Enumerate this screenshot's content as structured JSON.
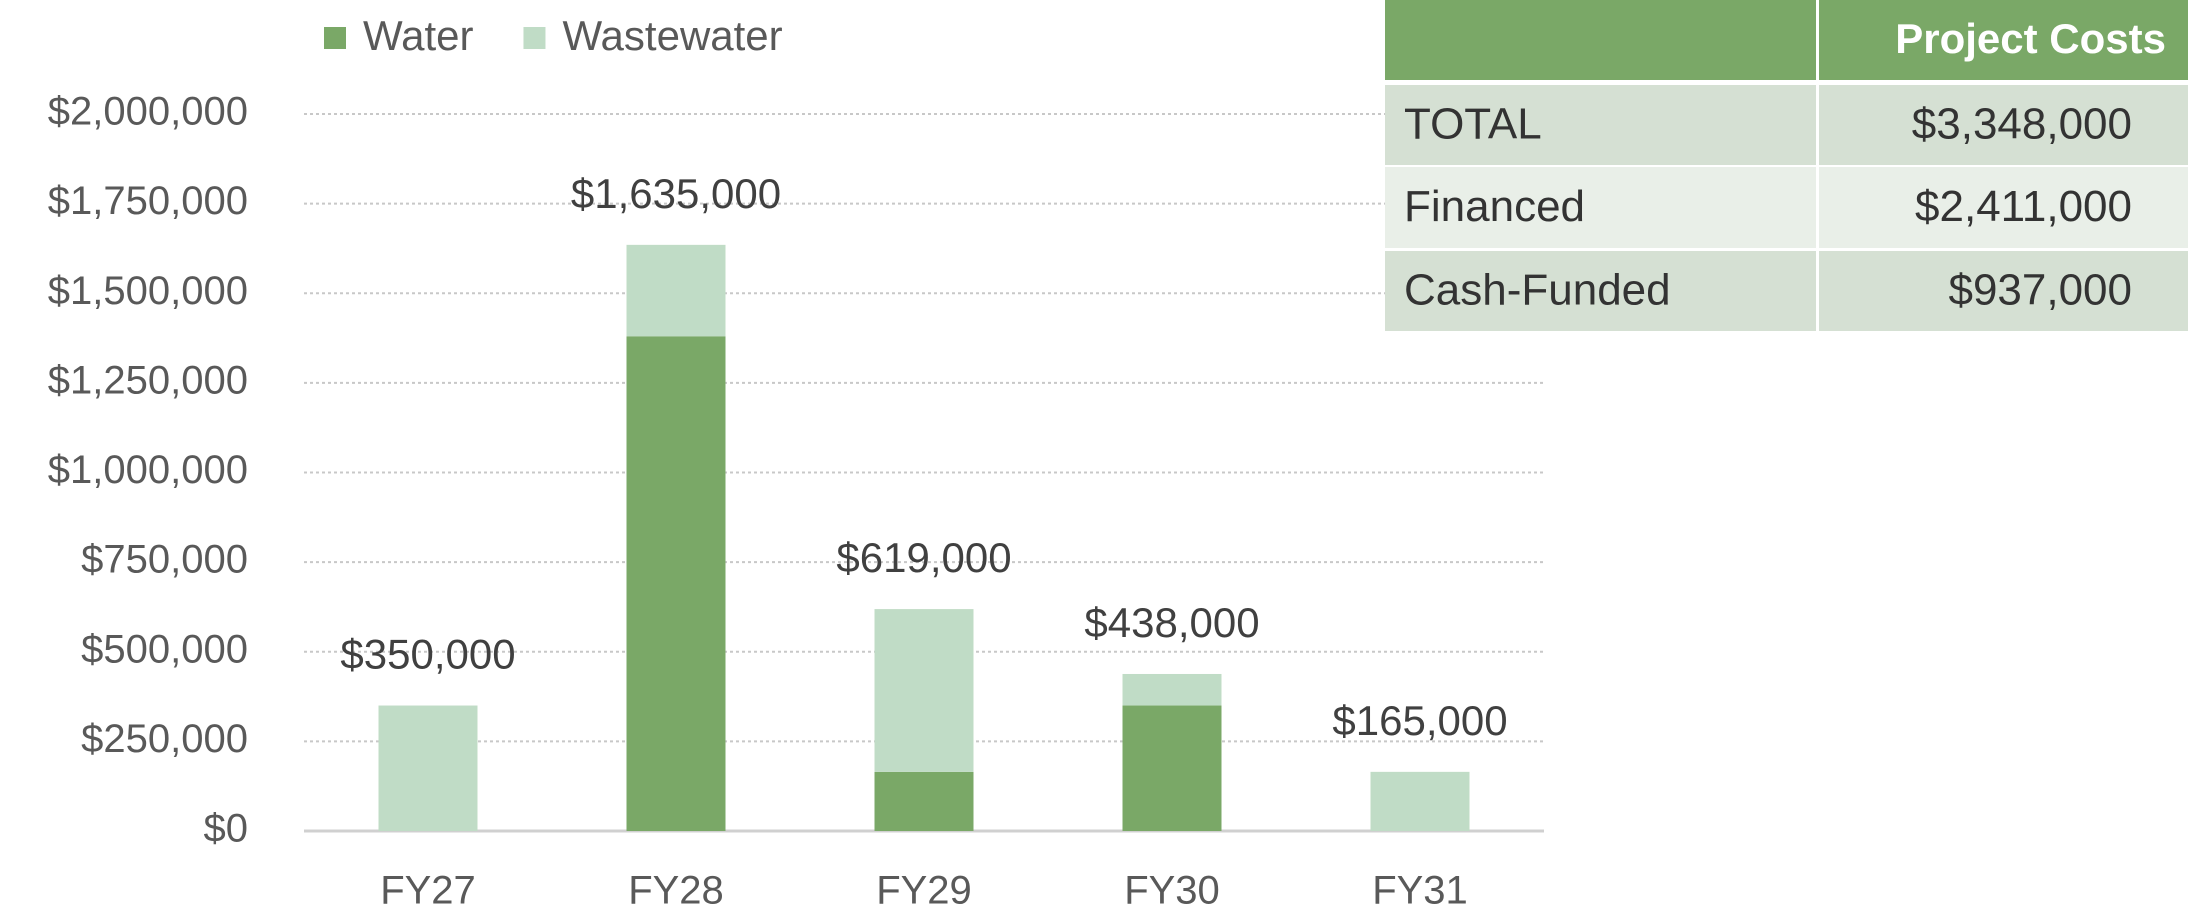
{
  "chart_data": {
    "type": "stacked_bar",
    "categories": [
      "FY27",
      "FY28",
      "FY29",
      "FY30",
      "FY31"
    ],
    "series": [
      {
        "name": "Water",
        "color": "#7aa867",
        "values": [
          0,
          1380000,
          165000,
          350000,
          0
        ]
      },
      {
        "name": "Wastewater",
        "color": "#c0dcc6",
        "values": [
          350000,
          255000,
          454000,
          88000,
          165000
        ]
      }
    ],
    "totals": [
      350000,
      1635000,
      619000,
      438000,
      165000
    ],
    "total_labels": [
      "$350,000",
      "$1,635,000",
      "$619,000",
      "$438,000",
      "$165,000"
    ],
    "ylim": [
      0,
      2000000
    ],
    "yticks": [
      {
        "value": 0,
        "label": "$0"
      },
      {
        "value": 250000,
        "label": "$250,000"
      },
      {
        "value": 500000,
        "label": "$500,000"
      },
      {
        "value": 750000,
        "label": "$750,000"
      },
      {
        "value": 1000000,
        "label": "$1,000,000"
      },
      {
        "value": 1250000,
        "label": "$1,250,000"
      },
      {
        "value": 1500000,
        "label": "$1,500,000"
      },
      {
        "value": 1750000,
        "label": "$1,750,000"
      },
      {
        "value": 2000000,
        "label": "$2,000,000"
      }
    ],
    "grid": true,
    "legend": "top-left"
  },
  "table": {
    "header": "Project Costs",
    "rows": [
      [
        "TOTAL",
        "$3,348,000"
      ],
      [
        "Financed",
        "$2,411,000"
      ],
      [
        "Cash-Funded",
        "$937,000"
      ]
    ]
  }
}
